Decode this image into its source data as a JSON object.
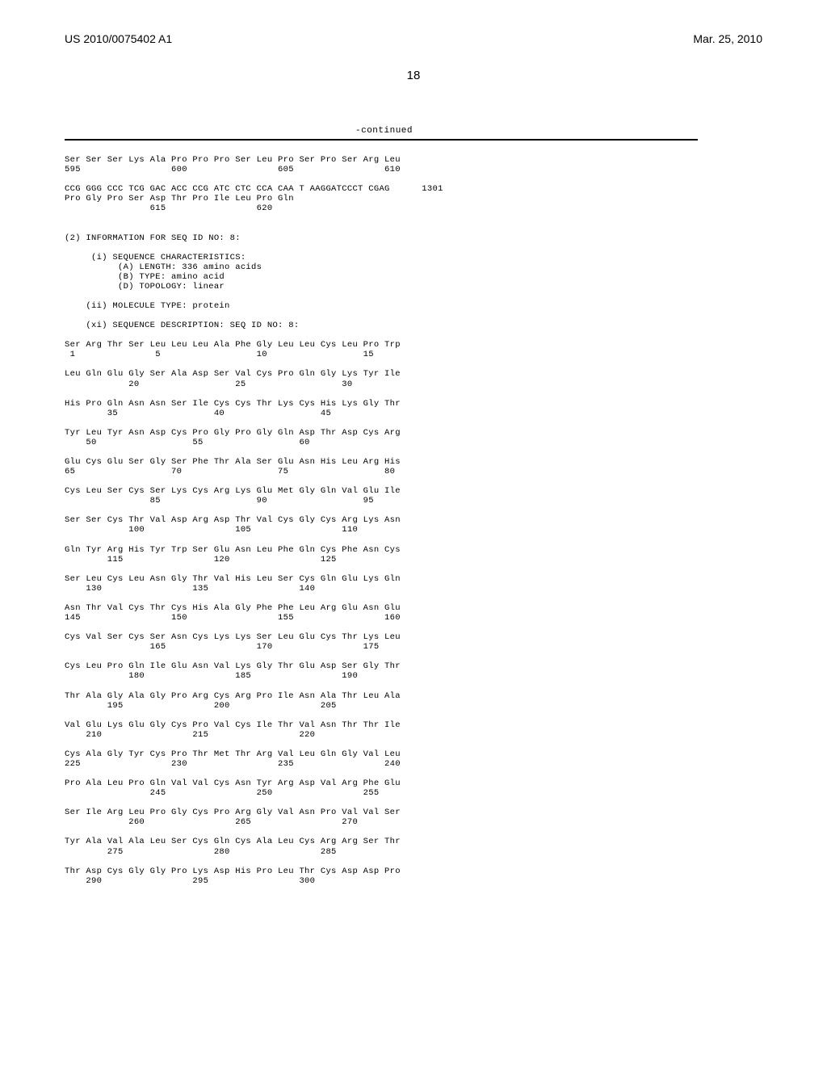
{
  "header": {
    "pub_number": "US 2010/0075402 A1",
    "pub_date": "Mar. 25, 2010",
    "page_number": "18",
    "continued_label": "-continued"
  },
  "seq_block_1": {
    "line1": "Ser Ser Ser Lys Ala Pro Pro Pro Ser Leu Pro Ser Pro Ser Arg Leu",
    "line2": "595                 600                 605                 610",
    "line3": "CCG GGG CCC TCG GAC ACC CCG ATC CTC CCA CAA T AAGGATCCCT CGAG      1301",
    "line4": "Pro Gly Pro Ser Asp Thr Pro Ile Leu Pro Gln",
    "line5": "                615                 620"
  },
  "seq_info": {
    "title": "(2) INFORMATION FOR SEQ ID NO: 8:",
    "char_title": "     (i) SEQUENCE CHARACTERISTICS:",
    "char_a": "          (A) LENGTH: 336 amino acids",
    "char_b": "          (B) TYPE: amino acid",
    "char_d": "          (D) TOPOLOGY: linear",
    "mol_type": "    (ii) MOLECULE TYPE: protein",
    "seq_desc": "    (xi) SEQUENCE DESCRIPTION: SEQ ID NO: 8:"
  },
  "protein_rows": [
    {
      "seq": "Ser Arg Thr Ser Leu Leu Leu Ala Phe Gly Leu Leu Cys Leu Pro Trp",
      "nums": " 1               5                  10                  15"
    },
    {
      "seq": "Leu Gln Glu Gly Ser Ala Asp Ser Val Cys Pro Gln Gly Lys Tyr Ile",
      "nums": "            20                  25                  30"
    },
    {
      "seq": "His Pro Gln Asn Asn Ser Ile Cys Cys Thr Lys Cys His Lys Gly Thr",
      "nums": "        35                  40                  45"
    },
    {
      "seq": "Tyr Leu Tyr Asn Asp Cys Pro Gly Pro Gly Gln Asp Thr Asp Cys Arg",
      "nums": "    50                  55                  60"
    },
    {
      "seq": "Glu Cys Glu Ser Gly Ser Phe Thr Ala Ser Glu Asn His Leu Arg His",
      "nums": "65                  70                  75                  80"
    },
    {
      "seq": "Cys Leu Ser Cys Ser Lys Cys Arg Lys Glu Met Gly Gln Val Glu Ile",
      "nums": "                85                  90                  95"
    },
    {
      "seq": "Ser Ser Cys Thr Val Asp Arg Asp Thr Val Cys Gly Cys Arg Lys Asn",
      "nums": "            100                 105                 110"
    },
    {
      "seq": "Gln Tyr Arg His Tyr Trp Ser Glu Asn Leu Phe Gln Cys Phe Asn Cys",
      "nums": "        115                 120                 125"
    },
    {
      "seq": "Ser Leu Cys Leu Asn Gly Thr Val His Leu Ser Cys Gln Glu Lys Gln",
      "nums": "    130                 135                 140"
    },
    {
      "seq": "Asn Thr Val Cys Thr Cys His Ala Gly Phe Phe Leu Arg Glu Asn Glu",
      "nums": "145                 150                 155                 160"
    },
    {
      "seq": "Cys Val Ser Cys Ser Asn Cys Lys Lys Ser Leu Glu Cys Thr Lys Leu",
      "nums": "                165                 170                 175"
    },
    {
      "seq": "Cys Leu Pro Gln Ile Glu Asn Val Lys Gly Thr Glu Asp Ser Gly Thr",
      "nums": "            180                 185                 190"
    },
    {
      "seq": "Thr Ala Gly Ala Gly Pro Arg Cys Arg Pro Ile Asn Ala Thr Leu Ala",
      "nums": "        195                 200                 205"
    },
    {
      "seq": "Val Glu Lys Glu Gly Cys Pro Val Cys Ile Thr Val Asn Thr Thr Ile",
      "nums": "    210                 215                 220"
    },
    {
      "seq": "Cys Ala Gly Tyr Cys Pro Thr Met Thr Arg Val Leu Gln Gly Val Leu",
      "nums": "225                 230                 235                 240"
    },
    {
      "seq": "Pro Ala Leu Pro Gln Val Val Cys Asn Tyr Arg Asp Val Arg Phe Glu",
      "nums": "                245                 250                 255"
    },
    {
      "seq": "Ser Ile Arg Leu Pro Gly Cys Pro Arg Gly Val Asn Pro Val Val Ser",
      "nums": "            260                 265                 270"
    },
    {
      "seq": "Tyr Ala Val Ala Leu Ser Cys Gln Cys Ala Leu Cys Arg Arg Ser Thr",
      "nums": "        275                 280                 285"
    },
    {
      "seq": "Thr Asp Cys Gly Gly Pro Lys Asp His Pro Leu Thr Cys Asp Asp Pro",
      "nums": "    290                 295                 300"
    }
  ]
}
